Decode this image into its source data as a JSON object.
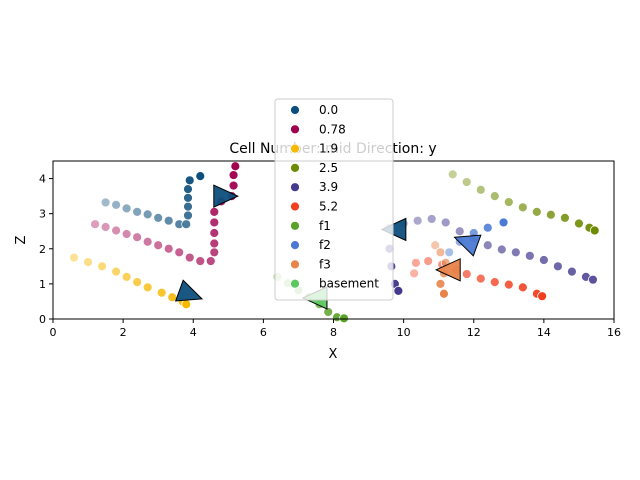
{
  "chart_data": {
    "type": "scatter",
    "title": "Cell Number: mid Direction: y",
    "xlabel": "X",
    "ylabel": "Z",
    "xlim": [
      0,
      16
    ],
    "ylim": [
      0,
      4.5
    ],
    "xticks": [
      "0",
      "2",
      "4",
      "6",
      "8",
      "10",
      "12",
      "14",
      "16"
    ],
    "yticks": [
      "0",
      "1",
      "2",
      "3",
      "4"
    ],
    "grid": false,
    "legend_position": "upper-center",
    "legend": [
      {
        "label": "0.0",
        "color": "#0d4f7c"
      },
      {
        "label": "0.78",
        "color": "#a1004f"
      },
      {
        "label": "1.9",
        "color": "#f7b800"
      },
      {
        "label": "2.5",
        "color": "#6d8a00"
      },
      {
        "label": "3.9",
        "color": "#433a8f"
      },
      {
        "label": "5.2",
        "color": "#f2401f"
      },
      {
        "label": "f1",
        "color": "#5aa12a"
      },
      {
        "label": "f2",
        "color": "#4a7ad3"
      },
      {
        "label": "f3",
        "color": "#e8834a"
      },
      {
        "label": "basement",
        "color": "#5dc860"
      }
    ],
    "series": [
      {
        "name": "0.0",
        "color": "#0d4f7c",
        "points": [
          [
            1.5,
            3.32
          ],
          [
            1.8,
            3.25
          ],
          [
            2.1,
            3.15
          ],
          [
            2.4,
            3.05
          ],
          [
            2.7,
            2.98
          ],
          [
            3.0,
            2.88
          ],
          [
            3.3,
            2.8
          ],
          [
            3.6,
            2.7
          ],
          [
            3.8,
            2.7
          ],
          [
            3.85,
            2.95
          ],
          [
            3.85,
            3.2
          ],
          [
            3.85,
            3.45
          ],
          [
            3.85,
            3.7
          ],
          [
            3.9,
            3.95
          ],
          [
            4.2,
            4.07
          ]
        ]
      },
      {
        "name": "0.78",
        "color": "#a1004f",
        "points": [
          [
            1.2,
            2.7
          ],
          [
            1.5,
            2.62
          ],
          [
            1.8,
            2.52
          ],
          [
            2.1,
            2.42
          ],
          [
            2.4,
            2.33
          ],
          [
            2.7,
            2.2
          ],
          [
            3.0,
            2.1
          ],
          [
            3.3,
            2.0
          ],
          [
            3.6,
            1.9
          ],
          [
            3.9,
            1.75
          ],
          [
            4.2,
            1.65
          ],
          [
            4.5,
            1.65
          ],
          [
            4.6,
            1.9
          ],
          [
            4.6,
            2.15
          ],
          [
            4.6,
            2.45
          ],
          [
            4.6,
            2.75
          ],
          [
            4.6,
            3.05
          ],
          [
            4.8,
            3.35
          ],
          [
            5.1,
            3.5
          ],
          [
            5.15,
            3.8
          ],
          [
            5.15,
            4.1
          ],
          [
            5.2,
            4.35
          ]
        ]
      },
      {
        "name": "1.9",
        "color": "#f7b800",
        "points": [
          [
            0.6,
            1.75
          ],
          [
            1.0,
            1.62
          ],
          [
            1.4,
            1.5
          ],
          [
            1.8,
            1.35
          ],
          [
            2.1,
            1.2
          ],
          [
            2.4,
            1.05
          ],
          [
            2.7,
            0.9
          ],
          [
            3.1,
            0.75
          ],
          [
            3.4,
            0.62
          ],
          [
            3.7,
            0.5
          ],
          [
            3.8,
            0.42
          ]
        ]
      },
      {
        "name": "2.5",
        "color": "#6d8a00",
        "points": [
          [
            11.4,
            4.12
          ],
          [
            11.8,
            3.9
          ],
          [
            12.2,
            3.68
          ],
          [
            12.6,
            3.5
          ],
          [
            13.0,
            3.33
          ],
          [
            13.4,
            3.18
          ],
          [
            13.8,
            3.05
          ],
          [
            14.2,
            2.97
          ],
          [
            14.6,
            2.88
          ],
          [
            15.0,
            2.72
          ],
          [
            15.3,
            2.6
          ],
          [
            15.45,
            2.52
          ]
        ]
      },
      {
        "name": "3.9",
        "color": "#433a8f",
        "points": [
          [
            9.6,
            2.6
          ],
          [
            10.0,
            2.72
          ],
          [
            10.4,
            2.8
          ],
          [
            10.8,
            2.85
          ],
          [
            11.2,
            2.75
          ],
          [
            11.6,
            2.5
          ],
          [
            12.0,
            2.3
          ],
          [
            12.4,
            2.1
          ],
          [
            12.8,
            1.98
          ],
          [
            13.2,
            1.9
          ],
          [
            13.6,
            1.8
          ],
          [
            14.0,
            1.68
          ],
          [
            14.4,
            1.5
          ],
          [
            14.8,
            1.35
          ],
          [
            15.2,
            1.2
          ],
          [
            15.4,
            1.12
          ],
          [
            9.6,
            2.0
          ],
          [
            9.65,
            1.5
          ],
          [
            9.75,
            1.0
          ],
          [
            9.85,
            0.8
          ]
        ]
      },
      {
        "name": "5.2",
        "color": "#f2401f",
        "points": [
          [
            10.3,
            1.3
          ],
          [
            10.35,
            1.6
          ],
          [
            10.7,
            1.65
          ],
          [
            11.1,
            1.55
          ],
          [
            11.5,
            1.4
          ],
          [
            11.8,
            1.28
          ],
          [
            12.2,
            1.15
          ],
          [
            12.6,
            1.05
          ],
          [
            13.0,
            0.98
          ],
          [
            13.4,
            0.9
          ],
          [
            13.8,
            0.72
          ],
          [
            13.95,
            0.65
          ]
        ]
      },
      {
        "name": "f1",
        "color": "#5aa12a",
        "points": [
          [
            6.4,
            1.2
          ],
          [
            6.7,
            1.02
          ],
          [
            7.0,
            0.82
          ],
          [
            7.3,
            0.62
          ],
          [
            7.6,
            0.42
          ],
          [
            7.85,
            0.2
          ],
          [
            8.1,
            0.05
          ],
          [
            8.3,
            0.02
          ]
        ]
      },
      {
        "name": "f2",
        "color": "#4a7ad3",
        "points": [
          [
            11.3,
            1.9
          ],
          [
            11.6,
            2.2
          ],
          [
            12.0,
            2.45
          ],
          [
            12.4,
            2.6
          ],
          [
            12.85,
            2.75
          ]
        ]
      },
      {
        "name": "f3",
        "color": "#e8834a",
        "points": [
          [
            10.9,
            2.1
          ],
          [
            11.05,
            1.9
          ],
          [
            11.2,
            1.6
          ],
          [
            11.15,
            1.3
          ],
          [
            11.05,
            1.0
          ],
          [
            11.15,
            0.72
          ]
        ]
      },
      {
        "name": "basement",
        "color": "#5dc860",
        "points": []
      }
    ],
    "arrows": [
      {
        "x": 4.9,
        "y": 3.5,
        "color": "#0d4f7c",
        "angle": 180
      },
      {
        "x": 3.9,
        "y": 0.7,
        "color": "#0d4f7c",
        "angle": 200
      },
      {
        "x": 9.75,
        "y": 2.55,
        "color": "#0d4f7c",
        "angle": 0
      },
      {
        "x": 11.8,
        "y": 2.2,
        "color": "#4a7ad3",
        "angle": 20
      },
      {
        "x": 11.3,
        "y": 1.4,
        "color": "#e8834a",
        "angle": 0
      },
      {
        "x": 7.5,
        "y": 0.6,
        "color": "#5dc860",
        "angle": 0
      }
    ]
  }
}
